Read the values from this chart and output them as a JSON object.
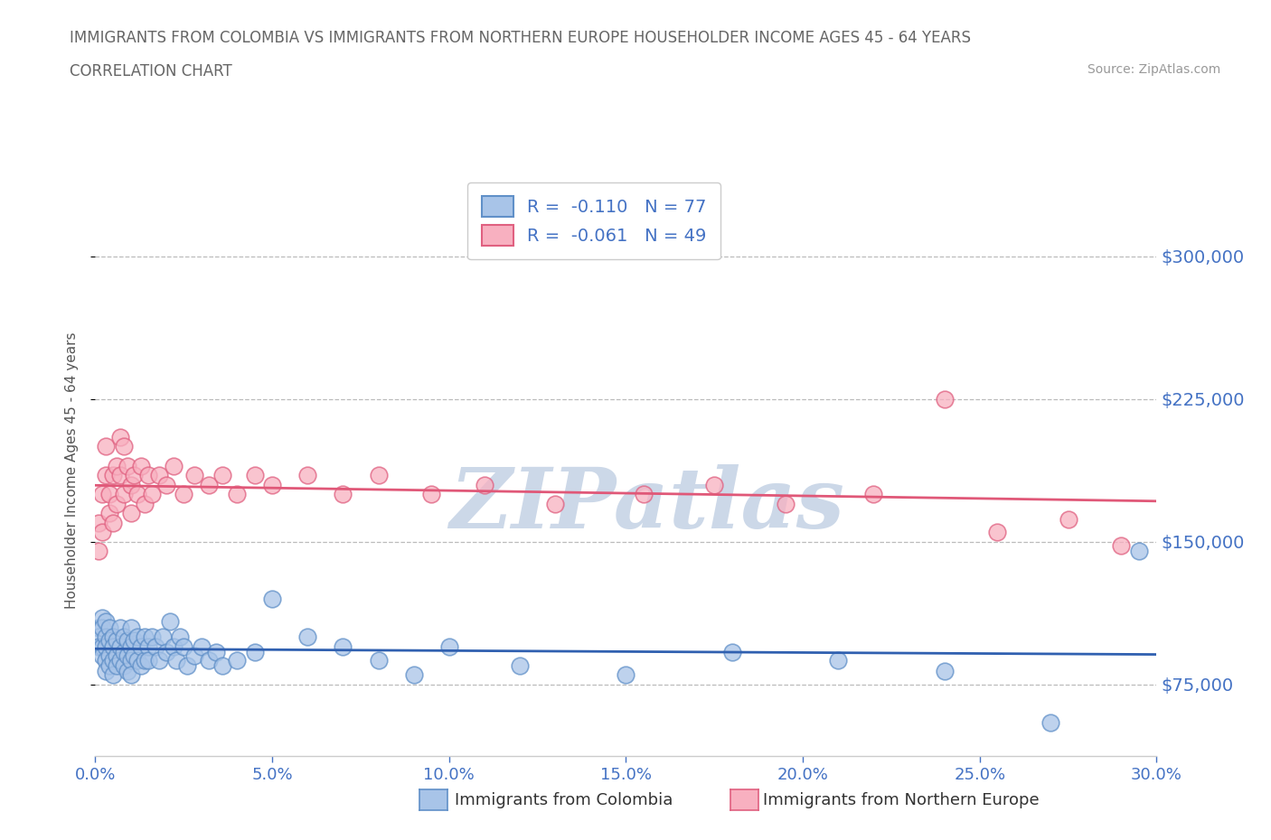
{
  "title_line1": "IMMIGRANTS FROM COLOMBIA VS IMMIGRANTS FROM NORTHERN EUROPE HOUSEHOLDER INCOME AGES 45 - 64 YEARS",
  "title_line2": "CORRELATION CHART",
  "source_text": "Source: ZipAtlas.com",
  "ylabel": "Householder Income Ages 45 - 64 years",
  "legend_label1": "Immigrants from Colombia",
  "legend_label2": "Immigrants from Northern Europe",
  "r1": -0.11,
  "n1": 77,
  "r2": -0.061,
  "n2": 49,
  "color1_face": "#a8c4e8",
  "color1_edge": "#6090c8",
  "color2_face": "#f8b0c0",
  "color2_edge": "#e06080",
  "line_color1": "#3060b0",
  "line_color2": "#e05878",
  "xlim": [
    0,
    0.3
  ],
  "ylim": [
    37500,
    337500
  ],
  "yticks": [
    75000,
    150000,
    225000,
    300000
  ],
  "xticks": [
    0.0,
    0.05,
    0.1,
    0.15,
    0.2,
    0.25,
    0.3
  ],
  "colombia_x": [
    0.001,
    0.001,
    0.001,
    0.002,
    0.002,
    0.002,
    0.002,
    0.003,
    0.003,
    0.003,
    0.003,
    0.003,
    0.004,
    0.004,
    0.004,
    0.004,
    0.005,
    0.005,
    0.005,
    0.005,
    0.006,
    0.006,
    0.006,
    0.007,
    0.007,
    0.007,
    0.008,
    0.008,
    0.008,
    0.009,
    0.009,
    0.009,
    0.01,
    0.01,
    0.01,
    0.01,
    0.011,
    0.011,
    0.012,
    0.012,
    0.013,
    0.013,
    0.014,
    0.014,
    0.015,
    0.015,
    0.016,
    0.017,
    0.018,
    0.019,
    0.02,
    0.021,
    0.022,
    0.023,
    0.024,
    0.025,
    0.026,
    0.028,
    0.03,
    0.032,
    0.034,
    0.036,
    0.04,
    0.045,
    0.05,
    0.06,
    0.07,
    0.08,
    0.09,
    0.1,
    0.12,
    0.15,
    0.18,
    0.21,
    0.24,
    0.27,
    0.295
  ],
  "colombia_y": [
    105000,
    100000,
    95000,
    110000,
    105000,
    95000,
    90000,
    108000,
    100000,
    95000,
    88000,
    82000,
    105000,
    98000,
    90000,
    85000,
    100000,
    95000,
    88000,
    80000,
    98000,
    90000,
    85000,
    105000,
    95000,
    88000,
    100000,
    92000,
    85000,
    98000,
    90000,
    82000,
    105000,
    95000,
    88000,
    80000,
    98000,
    90000,
    100000,
    88000,
    95000,
    85000,
    100000,
    88000,
    95000,
    88000,
    100000,
    95000,
    88000,
    100000,
    92000,
    108000,
    95000,
    88000,
    100000,
    95000,
    85000,
    90000,
    95000,
    88000,
    92000,
    85000,
    88000,
    92000,
    120000,
    100000,
    95000,
    88000,
    80000,
    95000,
    85000,
    80000,
    92000,
    88000,
    82000,
    55000,
    145000
  ],
  "northern_x": [
    0.001,
    0.001,
    0.002,
    0.002,
    0.003,
    0.003,
    0.004,
    0.004,
    0.005,
    0.005,
    0.006,
    0.006,
    0.007,
    0.007,
    0.008,
    0.008,
    0.009,
    0.01,
    0.01,
    0.011,
    0.012,
    0.013,
    0.014,
    0.015,
    0.016,
    0.018,
    0.02,
    0.022,
    0.025,
    0.028,
    0.032,
    0.036,
    0.04,
    0.045,
    0.05,
    0.06,
    0.07,
    0.08,
    0.095,
    0.11,
    0.13,
    0.155,
    0.175,
    0.195,
    0.22,
    0.24,
    0.255,
    0.275,
    0.29
  ],
  "northern_y": [
    160000,
    145000,
    175000,
    155000,
    200000,
    185000,
    175000,
    165000,
    185000,
    160000,
    190000,
    170000,
    205000,
    185000,
    200000,
    175000,
    190000,
    180000,
    165000,
    185000,
    175000,
    190000,
    170000,
    185000,
    175000,
    185000,
    180000,
    190000,
    175000,
    185000,
    180000,
    185000,
    175000,
    185000,
    180000,
    185000,
    175000,
    185000,
    175000,
    180000,
    170000,
    175000,
    180000,
    170000,
    175000,
    225000,
    155000,
    162000,
    148000
  ],
  "watermark_text": "ZIPatlas",
  "watermark_color": "#ccd8e8",
  "background_color": "#ffffff",
  "grid_color": "#bbbbbb",
  "tick_color": "#4472c4",
  "title_color": "#666666"
}
